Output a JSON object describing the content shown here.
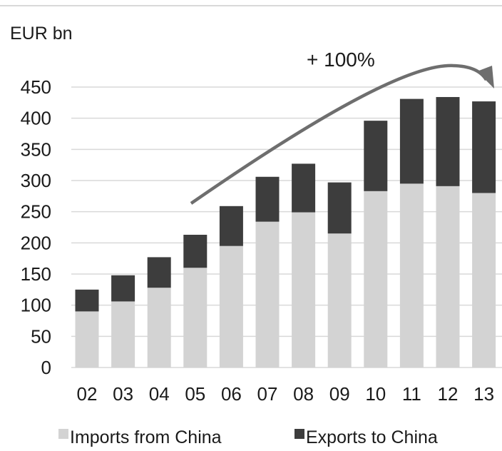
{
  "chart_data": {
    "type": "bar",
    "stacked": true,
    "unit_label": "EUR bn",
    "categories": [
      "02",
      "03",
      "04",
      "05",
      "06",
      "07",
      "08",
      "09",
      "10",
      "11",
      "12",
      "13"
    ],
    "series": [
      {
        "name": "Imports from China",
        "color": "#d3d3d3",
        "values": [
          90,
          106,
          128,
          160,
          195,
          234,
          249,
          215,
          283,
          295,
          291,
          280
        ]
      },
      {
        "name": "Exports to China",
        "color": "#3d3d3d",
        "values": [
          35,
          42,
          49,
          53,
          64,
          72,
          78,
          82,
          113,
          136,
          143,
          147
        ]
      }
    ],
    "ylim": [
      0,
      450
    ],
    "yticks": [
      0,
      50,
      100,
      150,
      200,
      250,
      300,
      350,
      400,
      450
    ],
    "grid": true,
    "legend_position": "bottom",
    "annotation": {
      "text": "+ 100%",
      "arrow_from": "05",
      "arrow_to": "13"
    },
    "arrow_color": "#6e6e6e",
    "gridline_color": "#d9d9d9"
  }
}
